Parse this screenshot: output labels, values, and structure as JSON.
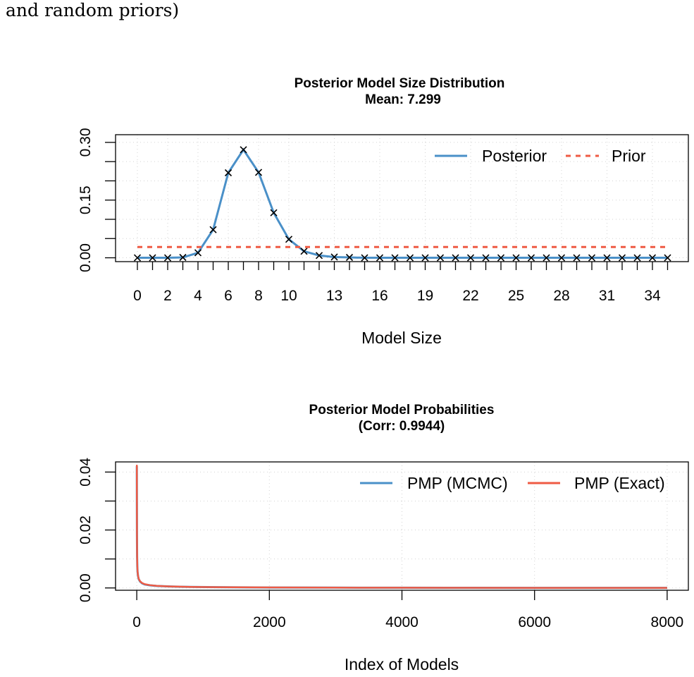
{
  "caption": "and random priors)",
  "chart_data": [
    {
      "type": "line",
      "title": "Posterior Model Size Distribution",
      "subtitle": "Mean: 7.299",
      "xlabel": "Model Size",
      "ylabel": "",
      "x": [
        0,
        1,
        2,
        3,
        4,
        5,
        6,
        7,
        8,
        9,
        10,
        11,
        12,
        13,
        14,
        15,
        16,
        17,
        18,
        19,
        20,
        21,
        22,
        23,
        24,
        25,
        26,
        27,
        28,
        29,
        30,
        31,
        32,
        33,
        34,
        35
      ],
      "xtick_labels": [
        "0",
        "2",
        "4",
        "6",
        "8",
        "10",
        "13",
        "16",
        "19",
        "22",
        "25",
        "28",
        "31",
        "34"
      ],
      "xtick_values": [
        0,
        2,
        4,
        6,
        8,
        10,
        13,
        16,
        19,
        22,
        25,
        28,
        31,
        34
      ],
      "ytick_labels": [
        "0.00",
        "0.15",
        "0.30"
      ],
      "ytick_values": [
        0,
        0.15,
        0.3
      ],
      "ylim": [
        -0.01,
        0.32
      ],
      "grid": true,
      "legend_position": "top-right",
      "series": [
        {
          "name": "Posterior",
          "color": "#4a90c8",
          "style": "solid",
          "markers": "x",
          "values": [
            0.0,
            0.0,
            0.0,
            0.001,
            0.013,
            0.073,
            0.221,
            0.281,
            0.222,
            0.117,
            0.048,
            0.017,
            0.006,
            0.002,
            0.001,
            0.0,
            0.0,
            0.0,
            0.0,
            0.0,
            0.0,
            0.0,
            0.0,
            0.0,
            0.0,
            0.0,
            0.0,
            0.0,
            0.0,
            0.0,
            0.0,
            0.0,
            0.0,
            0.0,
            0.0,
            0.0
          ]
        },
        {
          "name": "Prior",
          "color": "#ef5b44",
          "style": "dashed",
          "values": [
            0.028,
            0.028,
            0.028,
            0.028,
            0.028,
            0.028,
            0.028,
            0.028,
            0.028,
            0.028,
            0.028,
            0.028,
            0.028,
            0.028,
            0.028,
            0.028,
            0.028,
            0.028,
            0.028,
            0.028,
            0.028,
            0.028,
            0.028,
            0.028,
            0.028,
            0.028,
            0.028,
            0.028,
            0.028,
            0.028,
            0.028,
            0.028,
            0.028,
            0.028,
            0.028,
            0.028
          ]
        }
      ]
    },
    {
      "type": "line",
      "title": "Posterior Model Probabilities",
      "subtitle": "(Corr: 0.9944)",
      "xlabel": "Index of Models",
      "ylabel": "",
      "xtick_labels": [
        "0",
        "2000",
        "4000",
        "6000",
        "8000"
      ],
      "xtick_values": [
        0,
        2000,
        4000,
        6000,
        8000
      ],
      "ytick_labels": [
        "0.00",
        "0.02",
        "0.04"
      ],
      "ytick_values": [
        0,
        0.02,
        0.04
      ],
      "xlim": [
        -320,
        8320
      ],
      "ylim": [
        -0.0008,
        0.0435
      ],
      "grid": true,
      "legend_position": "top-right",
      "series": [
        {
          "name": "PMP (MCMC)",
          "color": "#4a90c8",
          "x": [
            1,
            2,
            3,
            5,
            8,
            12,
            20,
            30,
            50,
            80,
            120,
            200,
            300,
            500,
            800,
            1200,
            2000,
            3000,
            4000,
            5000,
            6000,
            7000,
            8000
          ],
          "values": [
            0.042,
            0.028,
            0.018,
            0.011,
            0.0075,
            0.0055,
            0.004,
            0.003,
            0.0022,
            0.0016,
            0.0012,
            0.0009,
            0.0007,
            0.0005,
            0.00035,
            0.00025,
            0.00015,
            0.0001,
            7e-05,
            5e-05,
            3e-05,
            2e-05,
            1e-05
          ]
        },
        {
          "name": "PMP (Exact)",
          "color": "#ef5b44",
          "x": [
            1,
            2,
            3,
            5,
            8,
            12,
            20,
            30,
            50,
            80,
            120,
            200,
            300,
            500,
            800,
            1200,
            2000,
            3000,
            4000,
            5000,
            6000,
            7000,
            8000
          ],
          "values": [
            0.0425,
            0.029,
            0.019,
            0.0115,
            0.0078,
            0.0057,
            0.0041,
            0.0031,
            0.0023,
            0.0017,
            0.0013,
            0.00095,
            0.00072,
            0.00052,
            0.00036,
            0.00026,
            0.00016,
            0.0001,
            7e-05,
            5e-05,
            3e-05,
            2e-05,
            1e-05
          ]
        }
      ]
    }
  ]
}
